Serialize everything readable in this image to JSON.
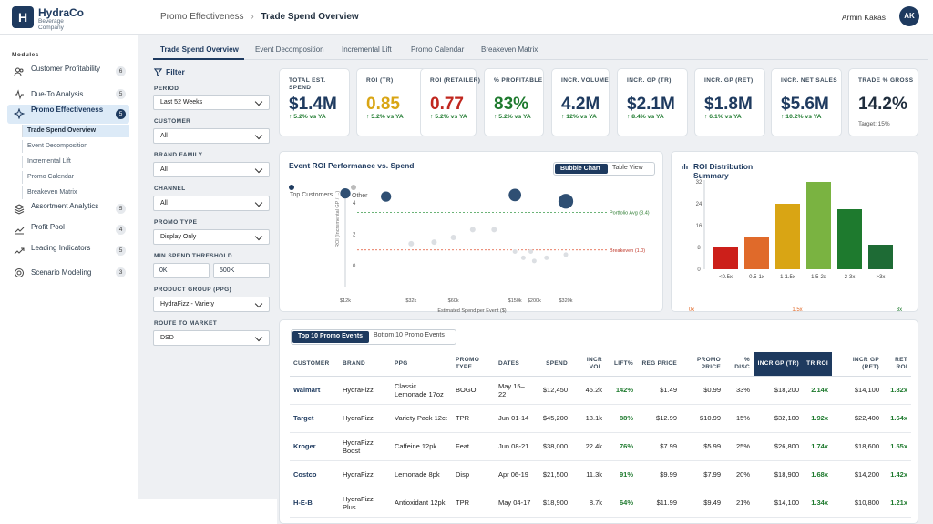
{
  "brand": {
    "name": "HydraCo",
    "sub": "Beverage Company",
    "logo_letter": "H"
  },
  "breadcrumb": {
    "parent": "Promo Effectiveness",
    "sep": "›",
    "current": "Trade Spend Overview"
  },
  "user": {
    "name": "Armin Kakas",
    "initials": "AK"
  },
  "sidebar": {
    "heading": "Modules",
    "items": [
      {
        "label": "Customer Profitability",
        "count": "6",
        "icon": "users-icon"
      },
      {
        "label": "Due-To Analysis",
        "count": "5",
        "icon": "pulse-icon"
      },
      {
        "label": "Promo Effectiveness",
        "count": "5",
        "icon": "sparkle-icon"
      },
      {
        "label": "Assortment Analytics",
        "count": "5",
        "icon": "layers-icon"
      },
      {
        "label": "Profit Pool",
        "count": "4",
        "icon": "chart-icon"
      },
      {
        "label": "Leading Indicators",
        "count": "5",
        "icon": "trend-icon"
      },
      {
        "label": "Scenario Modeling",
        "count": "3",
        "icon": "target-icon"
      }
    ],
    "subitems": [
      "Trade Spend Overview",
      "Event Decomposition",
      "Incremental Lift",
      "Promo Calendar",
      "Breakeven Matrix"
    ]
  },
  "tabs": [
    "Trade Spend Overview",
    "Event Decomposition",
    "Incremental Lift",
    "Promo Calendar",
    "Breakeven Matrix"
  ],
  "filters": {
    "title": "Filter",
    "period": {
      "label": "PERIOD",
      "value": "Last 52 Weeks"
    },
    "customer": {
      "label": "CUSTOMER",
      "value": "All"
    },
    "brand_family": {
      "label": "BRAND FAMILY",
      "value": "All"
    },
    "channel": {
      "label": "CHANNEL",
      "value": "All"
    },
    "promo_type": {
      "label": "PROMO TYPE",
      "value": "Display Only"
    },
    "min_spend": {
      "label": "MIN SPEND THRESHOLD",
      "min": "0K",
      "max": "500K"
    },
    "ppg": {
      "label": "PRODUCT GROUP (PPG)",
      "value": "HydraFizz - Variety"
    },
    "route": {
      "label": "ROUTE TO MARKET",
      "value": "DSD"
    }
  },
  "kpis": [
    {
      "label": "TOTAL EST. SPEND",
      "value": "$1.4M",
      "delta": "↑ 5.2% vs YA",
      "color": "#1e3a5f"
    },
    {
      "label": "ROI (TR)",
      "value": "0.85",
      "delta": "↑ 5.2% vs YA",
      "color": "#d9a514"
    },
    {
      "label": "ROI (RETAILER)",
      "value": "0.77",
      "delta": "↑ 5.2% vs YA",
      "color": "#c0271f"
    },
    {
      "label": "% PROFITABLE",
      "value": "83%",
      "delta": "↑ 5.2% vs YA",
      "color": "#1e7a2e"
    },
    {
      "label": "INCR. VOLUME",
      "value": "4.2M",
      "delta": "↑ 12% vs YA",
      "color": "#1e3a5f"
    },
    {
      "label": "INCR. GP (TR)",
      "value": "$2.1M",
      "delta": "↑ 8.4% vs YA",
      "color": "#1e3a5f"
    },
    {
      "label": "INCR. GP (RET)",
      "value": "$1.8M",
      "delta": "↑ 6.1% vs YA",
      "color": "#1e3a5f"
    },
    {
      "label": "INCR. NET SALES",
      "value": "$5.6M",
      "delta": "↑ 10.2% vs YA",
      "color": "#1e3a5f"
    },
    {
      "label": "TRADE % GROSS",
      "value": "14.2%",
      "delta": "Target: 15%",
      "color": "#1f2d3d"
    }
  ],
  "bubble": {
    "title": "Event ROI Performance vs. Spend",
    "toggle_on": "Bubble Chart",
    "toggle_off": "Table View",
    "legend": [
      "Top Customers",
      "Other"
    ],
    "ylabel": "ROI (Incremental GP / ...)",
    "xlabel": "Estimated Spend per Event ($)",
    "ref_avg": "Portfolio Avg (3.4)",
    "ref_break": "Breakeven (1.0)"
  },
  "chart_data": [
    {
      "type": "scatter",
      "title": "Event ROI Performance vs. Spend",
      "xlabel": "Estimated Spend per Event ($)",
      "ylabel": "ROI (Incremental GP / ...)",
      "x_ticks": [
        "$12k",
        "$32k",
        "$60k",
        "$150k",
        "$200k",
        "$320k"
      ],
      "y_ticks": [
        "0",
        "2",
        "4"
      ],
      "ref_lines": [
        {
          "name": "Portfolio Avg (3.4)",
          "y": 3.4
        },
        {
          "name": "Breakeven (1.0)",
          "y": 1.0
        }
      ],
      "series": [
        {
          "name": "Top Customers",
          "points": [
            [
              12000,
              4.6,
              9
            ],
            [
              22000,
              4.4,
              9
            ],
            [
              150000,
              4.5,
              11
            ],
            [
              320000,
              4.1,
              13
            ]
          ]
        },
        {
          "name": "Other",
          "points": [
            [
              32000,
              1.4,
              6
            ],
            [
              45000,
              1.5,
              6
            ],
            [
              60000,
              1.8,
              6
            ],
            [
              80000,
              2.3,
              6
            ],
            [
              110000,
              2.3,
              6
            ],
            [
              150000,
              0.9,
              5
            ],
            [
              170000,
              0.5,
              5
            ],
            [
              190000,
              0.9,
              5
            ],
            [
              200000,
              0.3,
              5
            ],
            [
              240000,
              0.5,
              5
            ],
            [
              320000,
              0.7,
              5
            ]
          ]
        }
      ]
    },
    {
      "type": "bar",
      "title": "ROI Distribution Summary",
      "categories": [
        "<0.5x",
        "0.5-1x",
        "1-1.5x",
        "1.5-2x",
        "2-3x",
        ">3x"
      ],
      "values": [
        8,
        12,
        24,
        32,
        22,
        9
      ],
      "colors": [
        "#cc1f1a",
        "#e06a2a",
        "#d9a514",
        "#7ab341",
        "#1e7a2e",
        "#1e6b35"
      ],
      "y_ticks": [
        "0",
        "8",
        "16",
        "24",
        "32"
      ],
      "ylim": [
        0,
        32
      ],
      "bottom_labels": [
        "0x",
        "1.5x",
        "3x"
      ]
    }
  ],
  "table": {
    "toggle_on": "Top 10 Promo Events",
    "toggle_off": "Bottom 10 Promo Events",
    "headers": [
      "CUSTOMER",
      "BRAND",
      "PPG",
      "PROMO TYPE",
      "DATES",
      "SPEND",
      "INCR VOL",
      "LIFT%",
      "REG PRICE",
      "PROMO PRICE",
      "% DISC",
      "INCR GP (TR)",
      "TR ROI",
      "INCR GP (RET)",
      "RET ROI"
    ],
    "rows": [
      [
        "Walmart",
        "HydraFizz",
        "Classic Lemonade 17oz",
        "BOGO",
        "May 15–22",
        "$12,450",
        "45.2k",
        "142%",
        "$1.49",
        "$0.99",
        "33%",
        "$18,200",
        "2.14x",
        "$14,100",
        "1.82x"
      ],
      [
        "Target",
        "HydraFizz",
        "Variety Pack 12ct",
        "TPR",
        "Jun 01-14",
        "$45,200",
        "18.1k",
        "88%",
        "$12.99",
        "$10.99",
        "15%",
        "$32,100",
        "1.92x",
        "$22,400",
        "1.64x"
      ],
      [
        "Kroger",
        "HydraFizz Boost",
        "Caffeine 12pk",
        "Feat",
        "Jun 08-21",
        "$38,000",
        "22.4k",
        "76%",
        "$7.99",
        "$5.99",
        "25%",
        "$26,800",
        "1.74x",
        "$18,600",
        "1.55x"
      ],
      [
        "Costco",
        "HydraFizz",
        "Lemonade 8pk",
        "Disp",
        "Apr 06-19",
        "$21,500",
        "11.3k",
        "91%",
        "$9.99",
        "$7.99",
        "20%",
        "$18,900",
        "1.68x",
        "$14,200",
        "1.42x"
      ],
      [
        "H-E-B",
        "HydraFizz Plus",
        "Antioxidant 12pk",
        "TPR",
        "May 04-17",
        "$18,900",
        "8.7k",
        "64%",
        "$11.99",
        "$9.49",
        "21%",
        "$14,100",
        "1.34x",
        "$10,800",
        "1.21x"
      ]
    ]
  }
}
